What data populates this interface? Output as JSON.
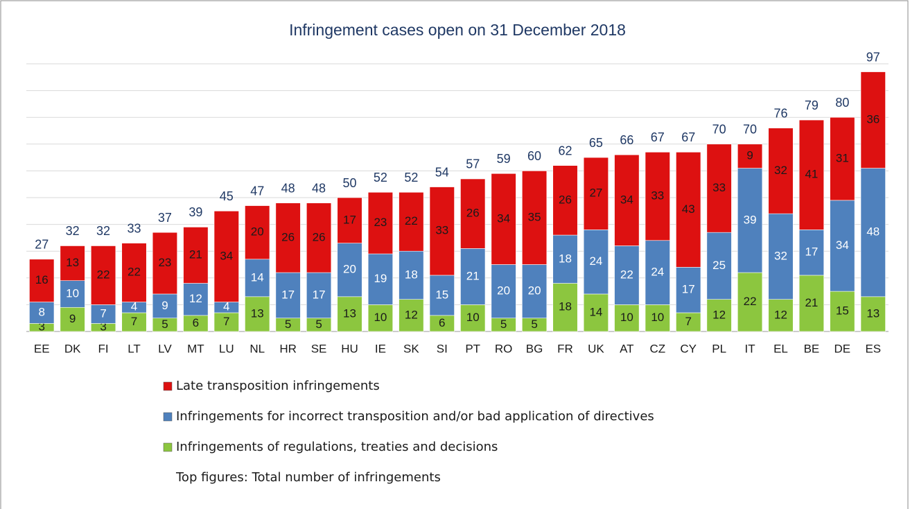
{
  "chart_data": {
    "type": "stacked_bar",
    "title": "Infringement cases open on 31 December 2018",
    "categories": [
      "EE",
      "DK",
      "FI",
      "LT",
      "LV",
      "MT",
      "LU",
      "NL",
      "HR",
      "SE",
      "HU",
      "IE",
      "SK",
      "SI",
      "PT",
      "RO",
      "BG",
      "FR",
      "UK",
      "AT",
      "CZ",
      "CY",
      "PL",
      "IT",
      "EL",
      "BE",
      "DE",
      "ES"
    ],
    "series": [
      {
        "name": "Infringements of regulations, treaties and decisions",
        "color": "#8cc63f",
        "label_color": "#1a1a1a",
        "values": [
          3,
          9,
          3,
          7,
          5,
          6,
          7,
          13,
          5,
          5,
          13,
          10,
          12,
          6,
          10,
          5,
          5,
          18,
          14,
          10,
          10,
          7,
          12,
          22,
          12,
          21,
          15,
          13
        ]
      },
      {
        "name": "Infringements for incorrect transposition and/or bad application of directives",
        "color": "#4f81bd",
        "label_color": "#ffffff",
        "values": [
          8,
          10,
          7,
          4,
          9,
          12,
          4,
          14,
          17,
          17,
          20,
          19,
          18,
          15,
          21,
          20,
          20,
          18,
          24,
          22,
          24,
          17,
          25,
          39,
          32,
          17,
          34,
          48
        ]
      },
      {
        "name": "Late transposition infringements",
        "color": "#dd1111",
        "label_color": "#1a1a1a",
        "values": [
          16,
          13,
          22,
          22,
          23,
          21,
          34,
          20,
          26,
          26,
          17,
          23,
          22,
          33,
          26,
          34,
          35,
          26,
          27,
          34,
          33,
          43,
          33,
          9,
          32,
          41,
          31,
          36
        ]
      }
    ],
    "totals": [
      27,
      32,
      32,
      33,
      37,
      39,
      45,
      47,
      48,
      48,
      50,
      52,
      52,
      54,
      57,
      59,
      60,
      62,
      65,
      66,
      67,
      67,
      70,
      70,
      76,
      79,
      80,
      97
    ],
    "note": "Top figures: Total number of infringements",
    "ylim": [
      0,
      100
    ],
    "yticks": [
      0,
      10,
      20,
      30,
      40,
      50,
      60,
      70,
      80,
      90,
      100
    ],
    "grid": true
  }
}
